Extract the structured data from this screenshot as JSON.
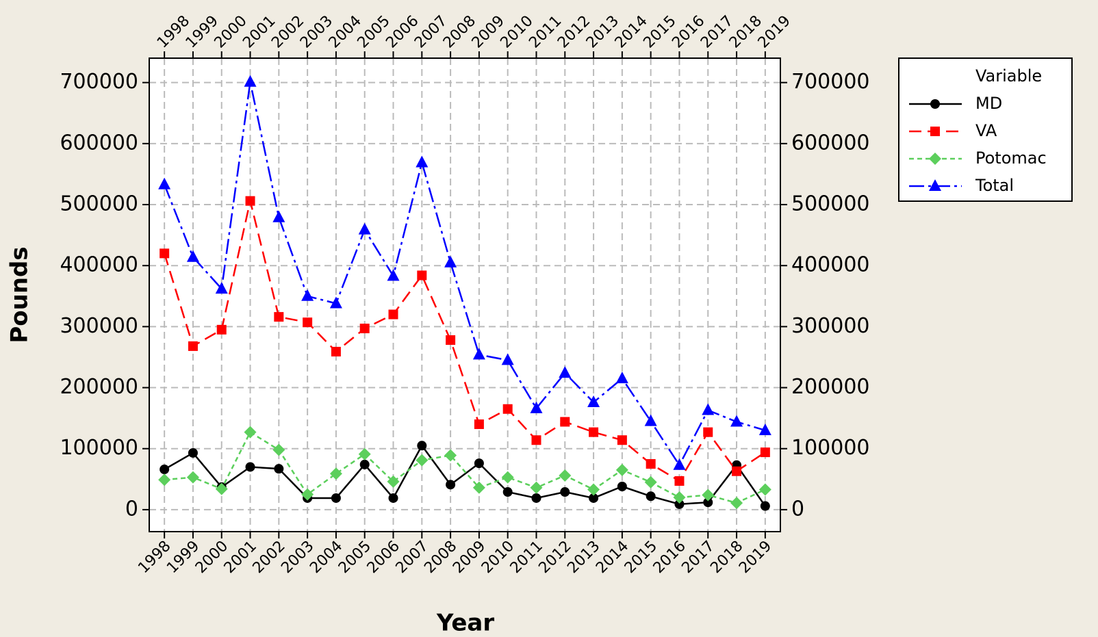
{
  "chart_data": {
    "type": "line",
    "x_label": "Year",
    "y_label": "Pounds",
    "legend_title": "Variable",
    "legend": "outside-right",
    "grid": true,
    "x": [
      1998,
      1999,
      2000,
      2001,
      2002,
      2003,
      2004,
      2005,
      2006,
      2007,
      2008,
      2009,
      2010,
      2011,
      2012,
      2013,
      2014,
      2015,
      2016,
      2017,
      2018,
      2019
    ],
    "xlim": [
      1997.47,
      2019.53
    ],
    "xticks": [
      1998,
      1999,
      2000,
      2001,
      2002,
      2003,
      2004,
      2005,
      2006,
      2007,
      2008,
      2009,
      2010,
      2011,
      2012,
      2013,
      2014,
      2015,
      2016,
      2017,
      2018,
      2019
    ],
    "ylim": [
      -36000,
      740000
    ],
    "yticks": [
      0,
      100000,
      200000,
      300000,
      400000,
      500000,
      600000,
      700000
    ],
    "series": [
      {
        "name": "MD",
        "color": "#000000",
        "marker": "circle",
        "dash": "none",
        "values": [
          66000,
          93000,
          37000,
          70000,
          67000,
          19000,
          19000,
          74000,
          19000,
          105000,
          41000,
          76000,
          29000,
          19000,
          29000,
          19000,
          38000,
          22000,
          9000,
          12000,
          73000,
          6000
        ]
      },
      {
        "name": "VA",
        "color": "#ff0000",
        "marker": "square",
        "dash": "18 9",
        "values": [
          420000,
          268000,
          295000,
          506000,
          316000,
          307000,
          259000,
          297000,
          320000,
          384000,
          278000,
          140000,
          165000,
          114000,
          144000,
          127000,
          114000,
          75000,
          47000,
          127000,
          63000,
          94000
        ]
      },
      {
        "name": "Potomac",
        "color": "#5ccf5c",
        "marker": "diamond",
        "dash": "7 5",
        "values": [
          49000,
          53000,
          34000,
          127000,
          98000,
          25000,
          59000,
          91000,
          46000,
          81000,
          89000,
          36000,
          53000,
          36000,
          56000,
          33000,
          65000,
          45000,
          20000,
          24000,
          11000,
          33000
        ]
      },
      {
        "name": "Total",
        "color": "#0000ff",
        "marker": "triangle",
        "dash": "22 6 4 6",
        "values": [
          533000,
          414000,
          362000,
          701000,
          479000,
          350000,
          338000,
          459000,
          383000,
          569000,
          405000,
          254000,
          245000,
          166000,
          224000,
          176000,
          215000,
          145000,
          73000,
          163000,
          144000,
          130000
        ]
      }
    ]
  }
}
